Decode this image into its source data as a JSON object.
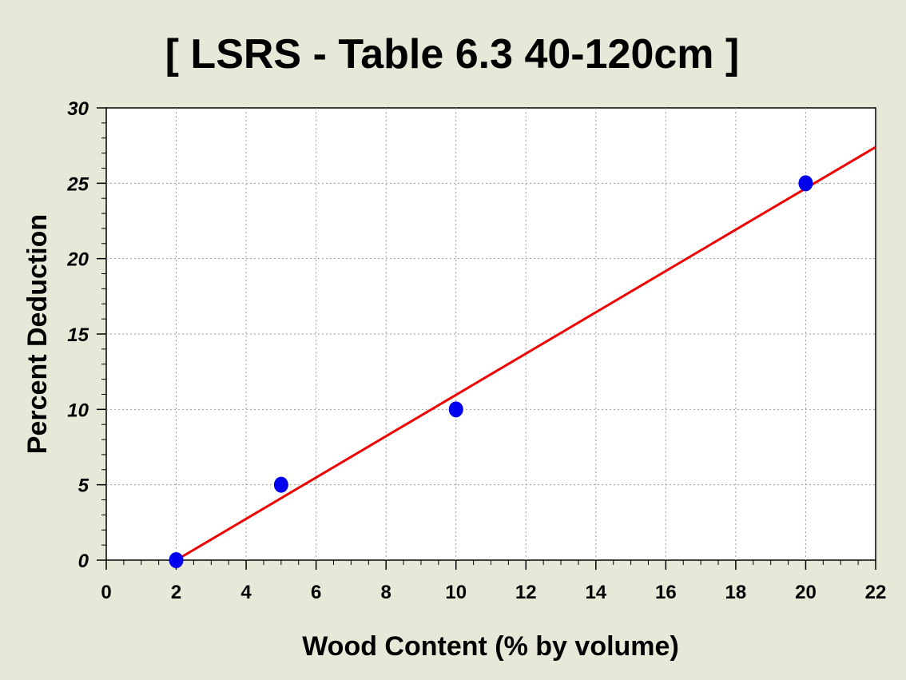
{
  "chart_data": {
    "type": "scatter",
    "title": "[ LSRS - Table 6.3 40-120cm ]",
    "xlabel": "Wood Content (% by volume)",
    "ylabel": "Percent Deduction",
    "xlim": [
      0,
      22
    ],
    "ylim": [
      0,
      30
    ],
    "xticks": [
      0,
      2,
      4,
      6,
      8,
      10,
      12,
      14,
      16,
      18,
      20,
      22
    ],
    "yticks": [
      0,
      5,
      10,
      15,
      20,
      25,
      30
    ],
    "grid": true,
    "legend": "none",
    "series": [
      {
        "type": "scatter",
        "color": "#0000ee",
        "points": [
          {
            "x": 2,
            "y": 0
          },
          {
            "x": 5,
            "y": 5
          },
          {
            "x": 10,
            "y": 10
          },
          {
            "x": 20,
            "y": 25
          }
        ]
      },
      {
        "type": "line",
        "color": "#ee0000",
        "points": [
          {
            "x": 2,
            "y": 0
          },
          {
            "x": 22,
            "y": 27.4
          }
        ]
      }
    ],
    "colors": {
      "background": "#e8e8d8",
      "plot_background": "#ffffff",
      "grid": "#9a9a9a"
    }
  }
}
